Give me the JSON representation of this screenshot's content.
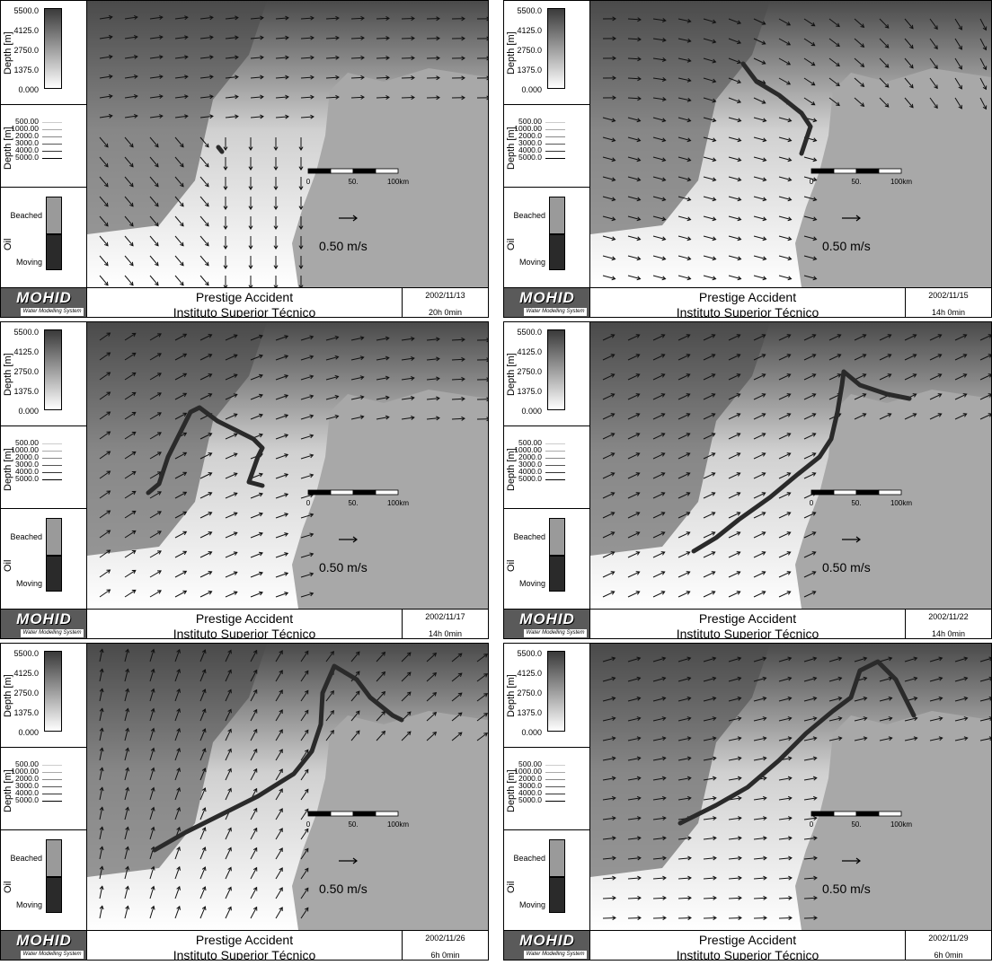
{
  "legend": {
    "depth_title": "Depth [m]",
    "depth_ticks": [
      "5500.0",
      "4125.0",
      "2750.0",
      "1375.0",
      "0.000"
    ],
    "contour_levels": [
      "500.00",
      "1000.00",
      "2000.0",
      "3000.0",
      "4000.0",
      "5000.0"
    ],
    "oil_title": "Oil",
    "oil_beached": "Beached",
    "oil_moving": "Moving"
  },
  "footer": {
    "logo": "MOHID",
    "logo_sub": "Water Modelling System",
    "title": "Prestige Accident",
    "subtitle": "Instituto Superior Técnico"
  },
  "map": {
    "scale_labels": [
      "0",
      "50.",
      "100km"
    ],
    "vector_label": "0.50  m/s"
  },
  "panels": [
    {
      "date": "2002/11/13",
      "time": "20h 0min"
    },
    {
      "date": "2002/11/15",
      "time": "14h 0min"
    },
    {
      "date": "2002/11/17",
      "time": "14h 0min"
    },
    {
      "date": "2002/11/22",
      "time": "14h 0min"
    },
    {
      "date": "2002/11/26",
      "time": "6h 0min"
    },
    {
      "date": "2002/11/29",
      "time": "6h 0min"
    }
  ],
  "colors": {
    "deep_water": "#4a4a4a",
    "shallow_water": "#ffffff",
    "land": "#a8a8a8",
    "oil": "#2a2a2a"
  }
}
